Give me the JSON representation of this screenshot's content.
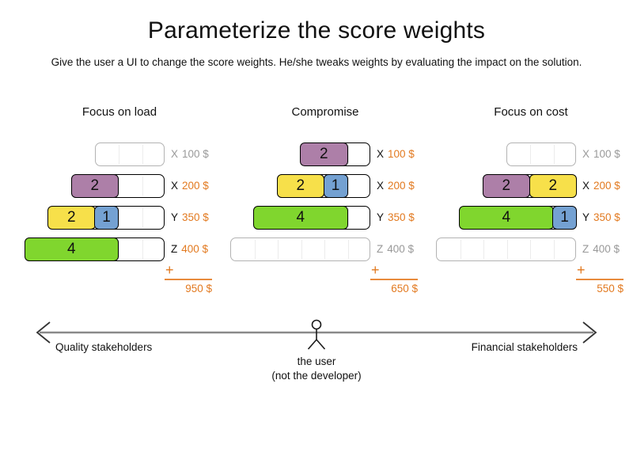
{
  "title": "Parameterize the score weights",
  "subtitle": "Give the user a UI to change the score weights. He/she tweaks weights by evaluating the impact on the solution.",
  "plus_sign": "+",
  "colors": {
    "purple": "#ad7fa8",
    "yellow": "#f7e04a",
    "blue": "#74a1d2",
    "green": "#80d62e",
    "orange": "#e2791f",
    "grey_text": "#999999",
    "grey_border": "#b3b3b3"
  },
  "columns": [
    {
      "title": "Focus on load",
      "total": "950 $",
      "rows": [
        {
          "letter": "X",
          "value": "100 $",
          "cells": 3,
          "empty": true,
          "blocks": []
        },
        {
          "letter": "X",
          "value": "200 $",
          "cells": 4,
          "empty": false,
          "blocks": [
            {
              "label": "2",
              "units": 2,
              "color": "purple"
            }
          ]
        },
        {
          "letter": "Y",
          "value": "350 $",
          "cells": 5,
          "empty": false,
          "blocks": [
            {
              "label": "2",
              "units": 2,
              "color": "yellow"
            },
            {
              "label": "1",
              "units": 1,
              "color": "blue"
            }
          ]
        },
        {
          "letter": "Z",
          "value": "400 $",
          "cells": 6,
          "empty": false,
          "blocks": [
            {
              "label": "4",
              "units": 4,
              "color": "green"
            }
          ]
        }
      ]
    },
    {
      "title": "Compromise",
      "total": "650 $",
      "rows": [
        {
          "letter": "X",
          "value": "100 $",
          "cells": 3,
          "empty": false,
          "blocks": [
            {
              "label": "2",
              "units": 2,
              "color": "purple"
            }
          ]
        },
        {
          "letter": "X",
          "value": "200 $",
          "cells": 4,
          "empty": false,
          "blocks": [
            {
              "label": "2",
              "units": 2,
              "color": "yellow"
            },
            {
              "label": "1",
              "units": 1,
              "color": "blue"
            }
          ]
        },
        {
          "letter": "Y",
          "value": "350 $",
          "cells": 5,
          "empty": false,
          "blocks": [
            {
              "label": "4",
              "units": 4,
              "color": "green"
            }
          ]
        },
        {
          "letter": "Z",
          "value": "400 $",
          "cells": 6,
          "empty": true,
          "blocks": []
        }
      ]
    },
    {
      "title": "Focus on cost",
      "total": "550 $",
      "rows": [
        {
          "letter": "X",
          "value": "100 $",
          "cells": 3,
          "empty": true,
          "blocks": []
        },
        {
          "letter": "X",
          "value": "200 $",
          "cells": 4,
          "empty": false,
          "blocks": [
            {
              "label": "2",
              "units": 2,
              "color": "purple"
            },
            {
              "label": "2",
              "units": 2,
              "color": "yellow"
            }
          ]
        },
        {
          "letter": "Y",
          "value": "350 $",
          "cells": 5,
          "empty": false,
          "blocks": [
            {
              "label": "4",
              "units": 4,
              "color": "green"
            },
            {
              "label": "1",
              "units": 1,
              "color": "blue"
            }
          ]
        },
        {
          "letter": "Z",
          "value": "400 $",
          "cells": 6,
          "empty": true,
          "blocks": []
        }
      ]
    }
  ],
  "axis": {
    "left_label": "Quality stakeholders",
    "right_label": "Financial stakeholders",
    "user_label_line1": "the user",
    "user_label_line2": "(not the developer)"
  }
}
